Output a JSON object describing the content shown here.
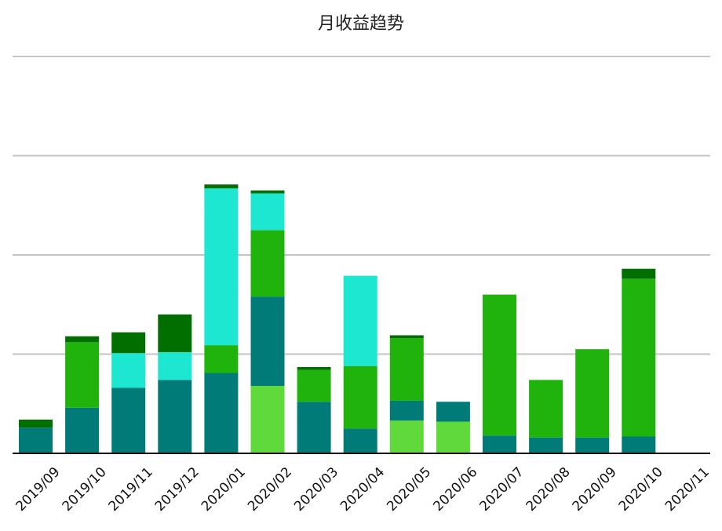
{
  "chart_data": {
    "type": "bar",
    "stacked": true,
    "title": "月收益趋势",
    "categories": [
      "2019/09",
      "2019/10",
      "2019/11",
      "2019/12",
      "2020/01",
      "2020/02",
      "2020/03",
      "2020/04",
      "2020/05",
      "2020/06",
      "2020/07",
      "2020/08",
      "2020/09",
      "2020/10",
      "2020/11"
    ],
    "ylim": [
      0,
      400
    ],
    "grid": true,
    "legend": "none",
    "series": [
      {
        "color": "#60d93a",
        "values": [
          0,
          0,
          0,
          0,
          0,
          68,
          0,
          0,
          33,
          32,
          0,
          0,
          0,
          0,
          0
        ]
      },
      {
        "color": "#007b77",
        "values": [
          26,
          46,
          66,
          74,
          81,
          90,
          52,
          25,
          20,
          20,
          18,
          16,
          16,
          17,
          0
        ]
      },
      {
        "color": "#1fb30c",
        "values": [
          0,
          66,
          0,
          0,
          28,
          67,
          32,
          63,
          63,
          0,
          142,
          58,
          89,
          159,
          0
        ]
      },
      {
        "color": "#1de6d1",
        "values": [
          0,
          0,
          35,
          28,
          158,
          37,
          0,
          91,
          0,
          0,
          0,
          0,
          0,
          0,
          0
        ]
      },
      {
        "color": "#006f00",
        "values": [
          8,
          6,
          21,
          38,
          4,
          3,
          3,
          0,
          3,
          0,
          0,
          0,
          0,
          10,
          0
        ]
      }
    ]
  }
}
